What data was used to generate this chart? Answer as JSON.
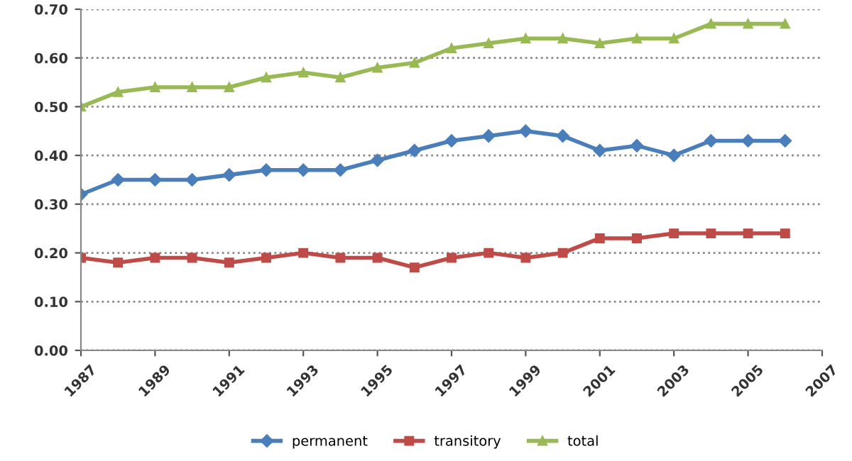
{
  "chart_data": {
    "type": "line",
    "x": [
      1987,
      1988,
      1989,
      1990,
      1991,
      1992,
      1993,
      1994,
      1995,
      1996,
      1997,
      1998,
      1999,
      2000,
      2001,
      2002,
      2003,
      2004,
      2005,
      2006
    ],
    "series": [
      {
        "name": "permanent",
        "color": "#4a7ebb",
        "marker": "diamond",
        "values": [
          0.32,
          0.35,
          0.35,
          0.35,
          0.36,
          0.37,
          0.37,
          0.37,
          0.39,
          0.41,
          0.43,
          0.44,
          0.45,
          0.44,
          0.41,
          0.42,
          0.4,
          0.43,
          0.43,
          0.43
        ]
      },
      {
        "name": "transitory",
        "color": "#be4b48",
        "marker": "square",
        "values": [
          0.19,
          0.18,
          0.19,
          0.19,
          0.18,
          0.19,
          0.2,
          0.19,
          0.19,
          0.17,
          0.19,
          0.2,
          0.19,
          0.2,
          0.23,
          0.23,
          0.24,
          0.24,
          0.24,
          0.24
        ]
      },
      {
        "name": "total",
        "color": "#98b954",
        "marker": "triangle",
        "values": [
          0.5,
          0.53,
          0.54,
          0.54,
          0.54,
          0.56,
          0.57,
          0.56,
          0.58,
          0.59,
          0.62,
          0.63,
          0.64,
          0.64,
          0.63,
          0.64,
          0.64,
          0.67,
          0.67,
          0.67
        ]
      }
    ],
    "xlim": [
      1987,
      2007
    ],
    "xticks": [
      1987,
      1989,
      1991,
      1993,
      1995,
      1997,
      1999,
      2001,
      2003,
      2005,
      2007
    ],
    "ylim": [
      0,
      0.7
    ],
    "yticks": [
      {
        "value": 0,
        "label": "0.00"
      },
      {
        "value": 0.1,
        "label": "0.10"
      },
      {
        "value": 0.2,
        "label": "0.20"
      },
      {
        "value": 0.3,
        "label": "0.30"
      },
      {
        "value": 0.4,
        "label": "0.40"
      },
      {
        "value": 0.5,
        "label": "0.50"
      },
      {
        "value": 0.6,
        "label": "0.60"
      },
      {
        "value": 0.7,
        "label": "0.70"
      }
    ],
    "grid": "y",
    "legend": "bottom",
    "line_style": "solid"
  }
}
